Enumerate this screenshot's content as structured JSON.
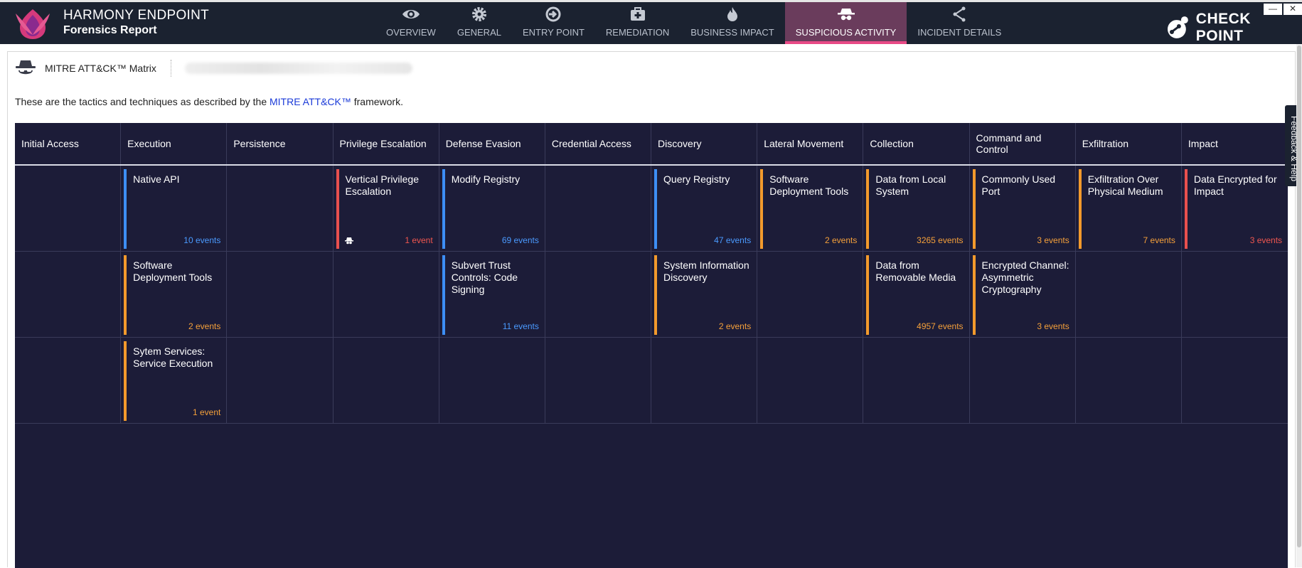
{
  "app": {
    "brand_line1": "HARMONY ENDPOINT",
    "brand_line2": "Forensics Report",
    "vendor": "CHECK POINT"
  },
  "nav": {
    "tabs": [
      {
        "label": "OVERVIEW",
        "icon": "eye-icon"
      },
      {
        "label": "GENERAL",
        "icon": "gear-icon"
      },
      {
        "label": "ENTRY POINT",
        "icon": "entry-icon"
      },
      {
        "label": "REMEDIATION",
        "icon": "medkit-icon"
      },
      {
        "label": "BUSINESS IMPACT",
        "icon": "fire-icon"
      },
      {
        "label": "SUSPICIOUS ACTIVITY",
        "icon": "spy-icon",
        "active": true
      },
      {
        "label": "INCIDENT DETAILS",
        "icon": "share-icon"
      }
    ]
  },
  "window_controls": {
    "minimize": "—",
    "close": "✕"
  },
  "page": {
    "title": "MITRE ATT&CK™ Matrix",
    "desc_before": "These are the tactics and techniques as described by the ",
    "desc_link": "MITRE ATT&CK™",
    "desc_after": " framework."
  },
  "matrix": {
    "tactics": [
      "Initial Access",
      "Execution",
      "Persistence",
      "Privilege Escalation",
      "Defense Evasion",
      "Credential Access",
      "Discovery",
      "Lateral Movement",
      "Collection",
      "Command and Control",
      "Exfiltration",
      "Impact"
    ],
    "rows": [
      [
        null,
        {
          "name": "Native API",
          "events": "10 events",
          "color": "blue"
        },
        null,
        {
          "name": "Vertical Privilege Escalation",
          "events": "1 event",
          "color": "red",
          "badge": "spy-icon"
        },
        {
          "name": "Modify Registry",
          "events": "69 events",
          "color": "blue"
        },
        null,
        {
          "name": "Query Registry",
          "events": "47 events",
          "color": "blue"
        },
        {
          "name": "Software Deployment Tools",
          "events": "2 events",
          "color": "orange"
        },
        {
          "name": "Data from Local System",
          "events": "3265 events",
          "color": "orange"
        },
        {
          "name": "Commonly Used Port",
          "events": "3 events",
          "color": "orange"
        },
        {
          "name": "Exfiltration Over Physical Medium",
          "events": "7 events",
          "color": "orange"
        },
        {
          "name": "Data Encrypted for Impact",
          "events": "3 events",
          "color": "red"
        }
      ],
      [
        null,
        {
          "name": "Software Deployment Tools",
          "events": "2 events",
          "color": "orange"
        },
        null,
        null,
        {
          "name": "Subvert Trust Controls: Code Signing",
          "events": "11 events",
          "color": "blue"
        },
        null,
        {
          "name": "System Information Discovery",
          "events": "2 events",
          "color": "orange"
        },
        null,
        {
          "name": "Data from Removable Media",
          "events": "4957 events",
          "color": "orange"
        },
        {
          "name": "Encrypted Channel: Asymmetric Cryptography",
          "events": "3 events",
          "color": "orange"
        },
        null,
        null
      ],
      [
        null,
        {
          "name": "Sytem Services: Service Execution",
          "events": "1 event",
          "color": "orange"
        },
        null,
        null,
        null,
        null,
        null,
        null,
        null,
        null,
        null,
        null
      ]
    ]
  },
  "feedback": {
    "label": "Feedback & Help"
  },
  "colors": {
    "topbar": "#1b2230",
    "matrix_bg": "#1c1c38",
    "active_tab": "#6a3c5c",
    "active_underline": "#e84a86",
    "blue": "#3d8ef5",
    "orange": "#f39a2c",
    "red": "#e8504e"
  }
}
